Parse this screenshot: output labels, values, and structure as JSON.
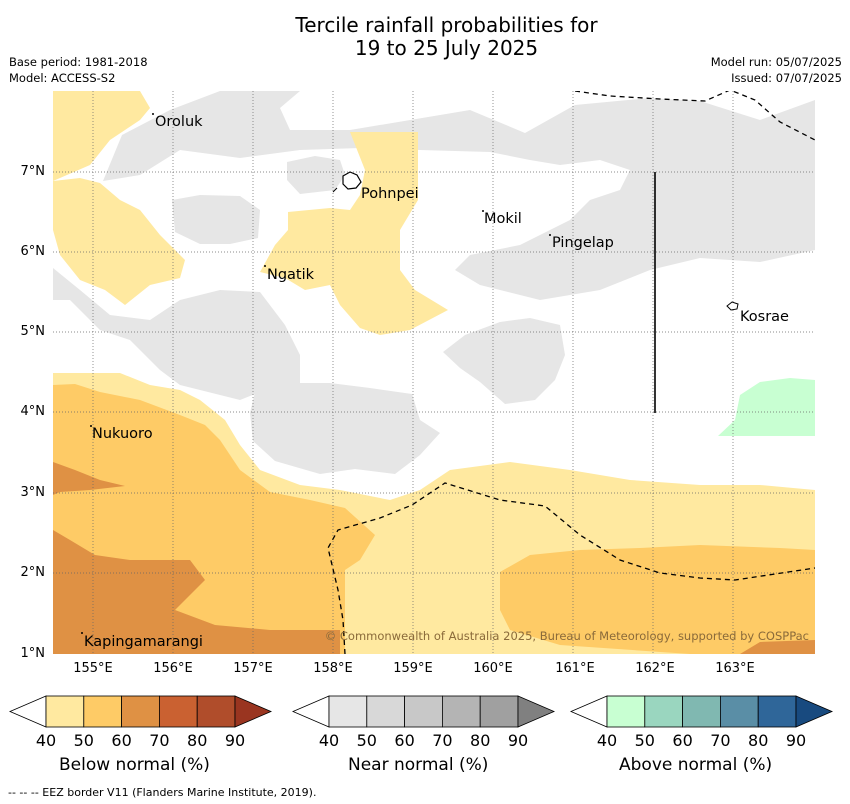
{
  "title": {
    "line1": "Tercile rainfall probabilities for",
    "line2": "19 to 25 July 2025"
  },
  "meta": {
    "base_period": "Base period: 1981-2018",
    "model": "Model: ACCESS-S2",
    "model_run": "Model run: 05/07/2025",
    "issued": "Issued: 07/07/2025"
  },
  "map": {
    "latitude_ticks": [
      "7°N",
      "6°N",
      "5°N",
      "4°N",
      "3°N",
      "2°N",
      "1°N"
    ],
    "longitude_ticks": [
      "155°E",
      "156°E",
      "157°E",
      "158°E",
      "159°E",
      "160°E",
      "161°E",
      "162°E",
      "163°E"
    ],
    "places": {
      "oroluk": "Oroluk",
      "pohnpei": "Pohnpei",
      "mokil": "Mokil",
      "pingelap": "Pingelap",
      "ngatik": "Ngatik",
      "kosrae": "Kosrae",
      "nukuoro": "Nukuoro",
      "kapingamarangi": "Kapingamarangi"
    },
    "copyright": "© Commonwealth of Australia 2025, Bureau of Meteorology, supported by COSPPac"
  },
  "legend": {
    "below": {
      "title": "Below normal (%)",
      "ticks": [
        "40",
        "50",
        "60",
        "70",
        "80",
        "90"
      ],
      "colors": [
        "#ffffff",
        "#ffe9a0",
        "#fecb66",
        "#df9144",
        "#ca6131",
        "#b04d2b",
        "#9a3520"
      ]
    },
    "near": {
      "title": "Near normal (%)",
      "ticks": [
        "40",
        "50",
        "60",
        "70",
        "80",
        "90"
      ],
      "colors": [
        "#ffffff",
        "#e6e6e6",
        "#d8d8d8",
        "#c8c8c8",
        "#b4b4b4",
        "#a0a0a0",
        "#808080"
      ]
    },
    "above": {
      "title": "Above normal (%)",
      "ticks": [
        "40",
        "50",
        "60",
        "70",
        "80",
        "90"
      ],
      "colors": [
        "#ffffff",
        "#c8ffd2",
        "#9ad6bf",
        "#80b8b1",
        "#5a8ea6",
        "#2f6699",
        "#184a7f"
      ]
    }
  },
  "footer": "--  --  -- EEZ border V11 (Flanders Marine Institute, 2019)."
}
